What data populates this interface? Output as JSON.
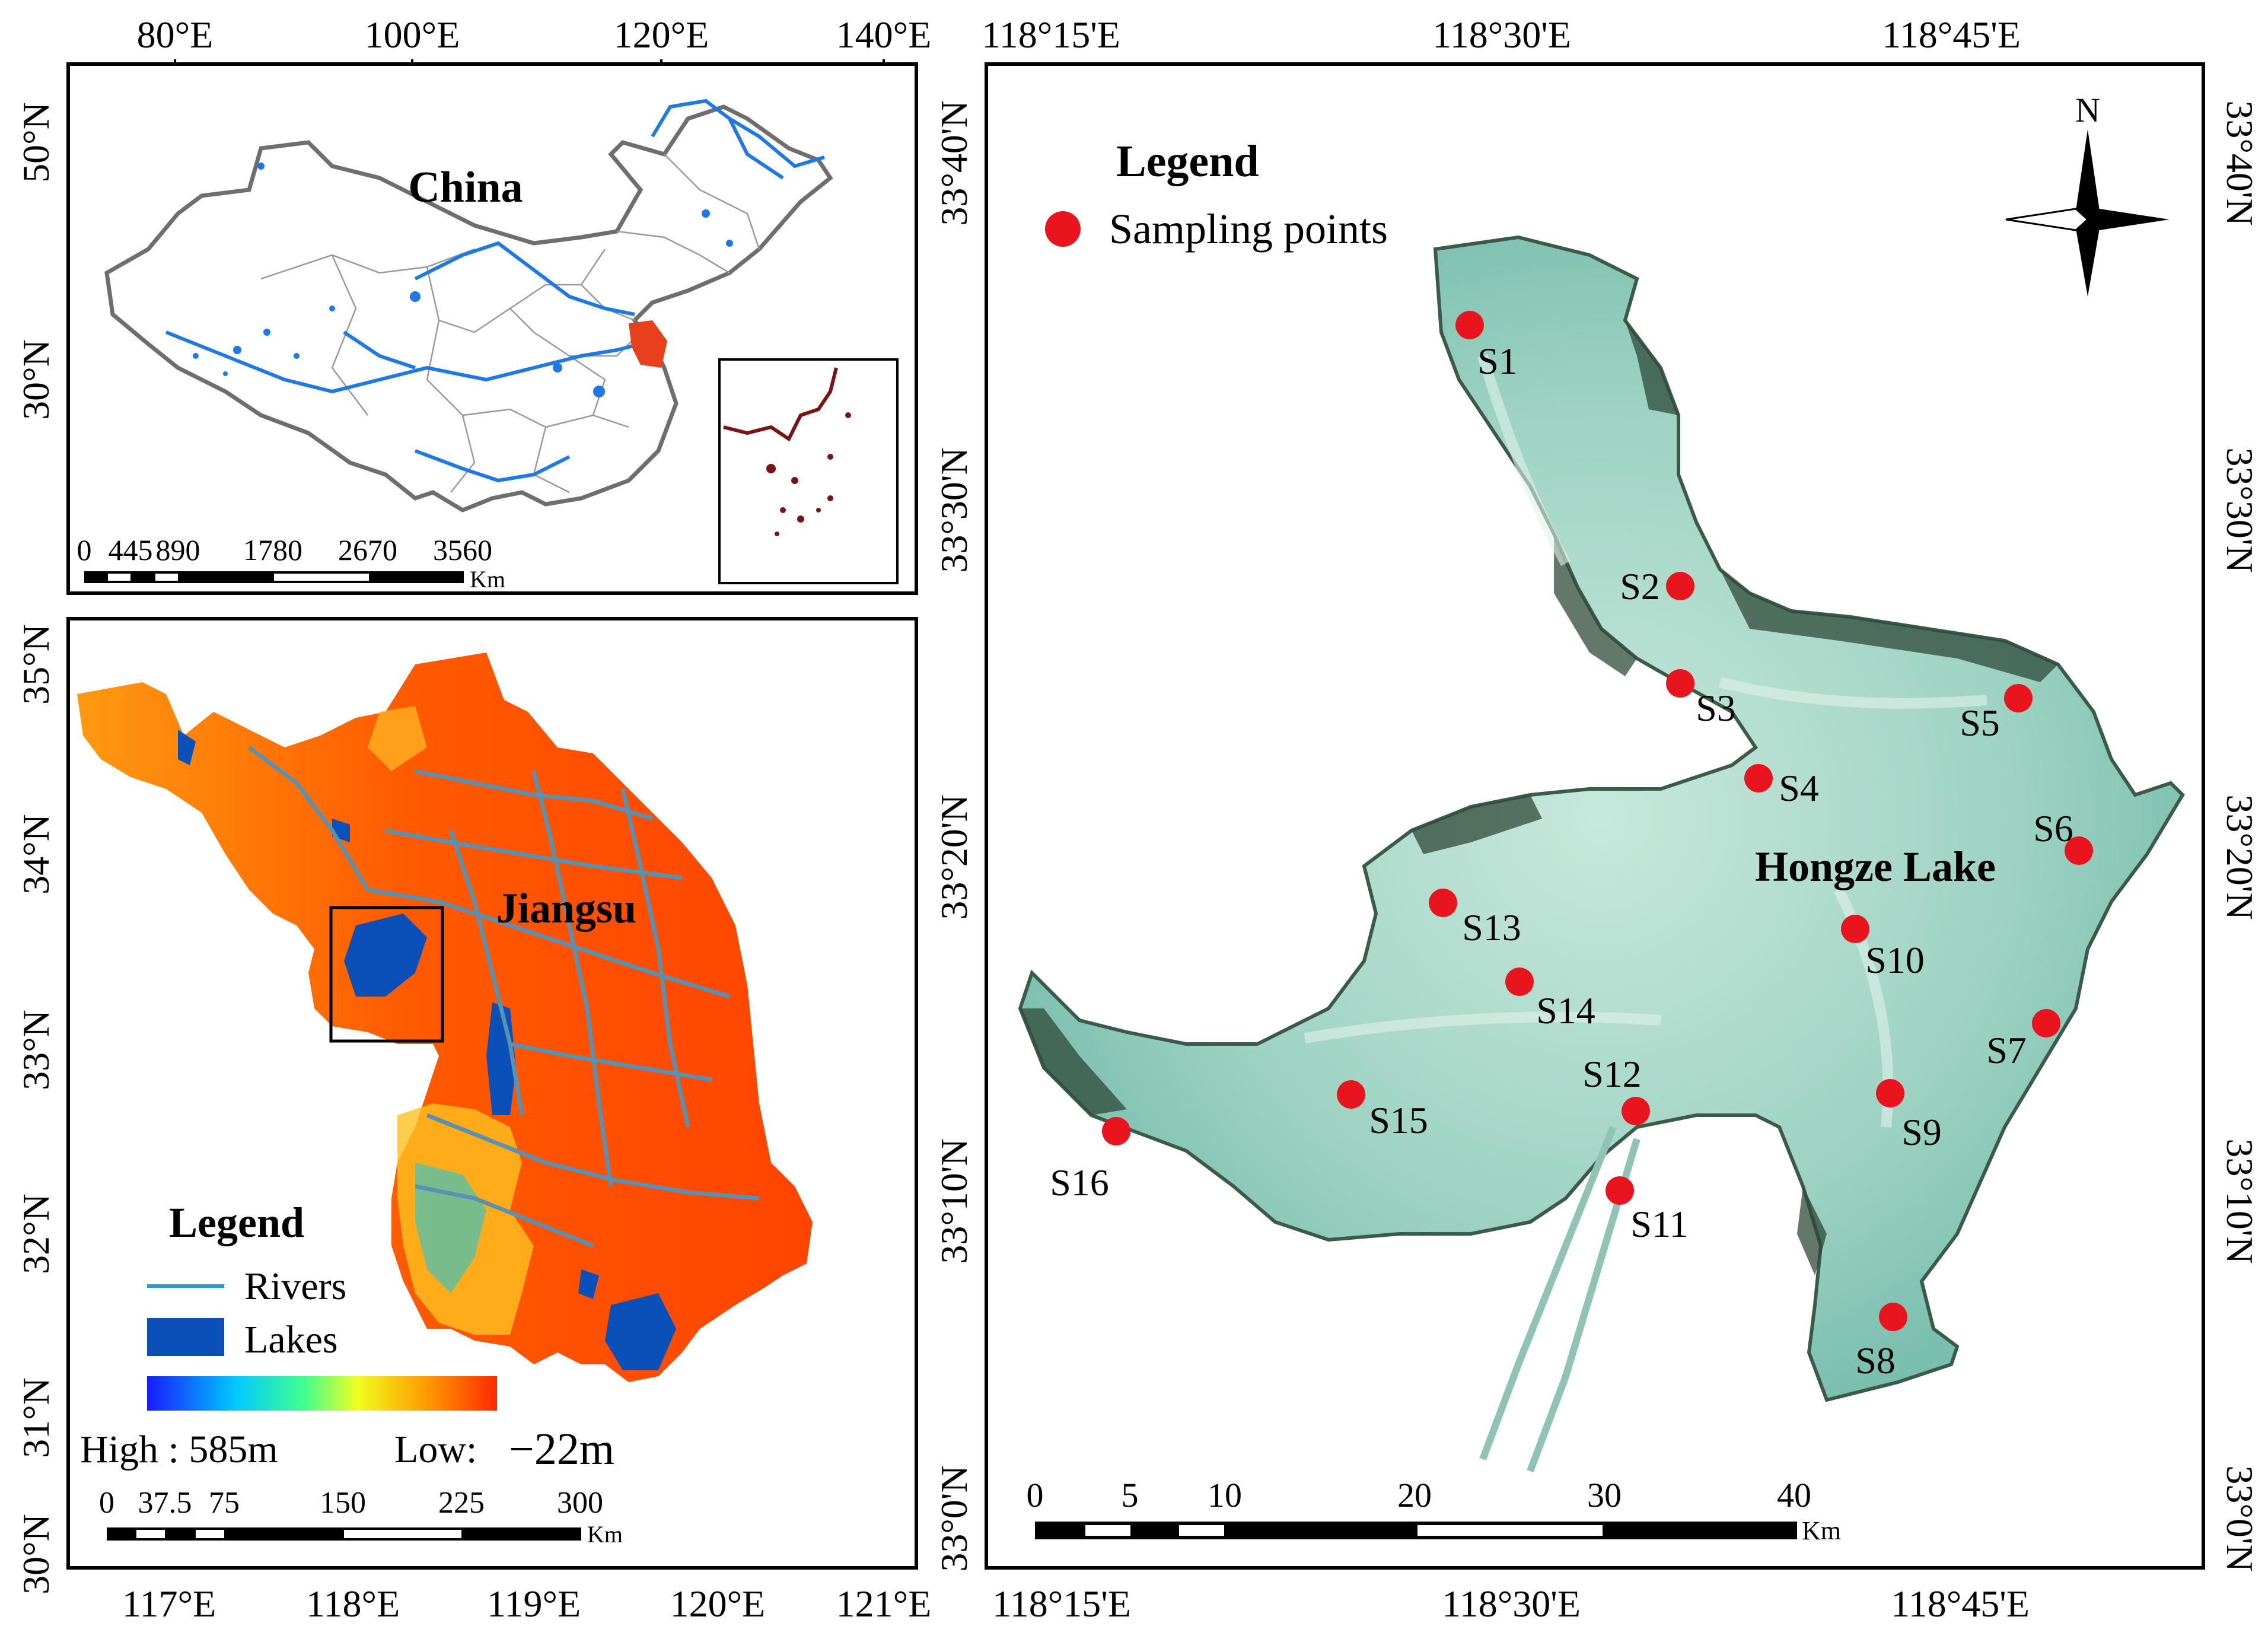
{
  "colors": {
    "frame": "#000000",
    "china_border": "#6e6e6e",
    "rivers": "#1e78e6",
    "lakes": "#0b4fb8",
    "jiangsu_highlight": "#e8401c",
    "south_china_sea": "#7a1414",
    "dem_high": "#ff3300",
    "dem_low": "#1a1aff",
    "jiangsu_rivers": "#5a90b0",
    "sampling_point": "#e8141e",
    "water": "#9fd3c4"
  },
  "china_panel": {
    "title": "China",
    "top_ticks": [
      "80°E",
      "100°E",
      "120°E",
      "140°E"
    ],
    "left_ticks": [
      "50°N",
      "30°N"
    ],
    "scale_labels": [
      "0",
      "445",
      "890",
      "1780",
      "2670",
      "3560"
    ],
    "scale_unit": "Km"
  },
  "jiangsu_panel": {
    "title": "Jiangsu",
    "left_ticks": [
      "35°N",
      "34°N",
      "33°N",
      "32°N",
      "31°N",
      "30°N"
    ],
    "bottom_ticks": [
      "117°E",
      "118°E",
      "119°E",
      "120°E",
      "121°E"
    ],
    "legend_title": "Legend",
    "legend_rivers": "Rivers",
    "legend_lakes": "Lakes",
    "dem_high_label": "High : 585m",
    "dem_low_label": "Low:",
    "dem_low_value": "−22m",
    "scale_labels": [
      "0",
      "37.5",
      "75",
      "150",
      "225",
      "300"
    ],
    "scale_unit": "Km"
  },
  "lake_panel": {
    "lake_name": "Hongze Lake",
    "legend_title": "Legend",
    "legend_item": "Sampling points",
    "north_label": "N",
    "top_ticks": [
      "118°15'E",
      "118°30'E",
      "118°45'E"
    ],
    "bottom_ticks": [
      "118°15'E",
      "118°30'E",
      "118°45'E"
    ],
    "left_ticks": [
      "33°40'N",
      "33°30'N",
      "33°20'N",
      "33°10'N",
      "33°0'N"
    ],
    "right_ticks": [
      "33°40'N",
      "33°30'N",
      "33°20'N",
      "33°10'N",
      "33°0'N"
    ],
    "scale_labels": [
      "0",
      "5",
      "10",
      "20",
      "30",
      "40"
    ],
    "scale_unit": "Km",
    "sampling_points": [
      "S1",
      "S2",
      "S3",
      "S4",
      "S5",
      "S6",
      "S7",
      "S8",
      "S9",
      "S10",
      "S11",
      "S12",
      "S13",
      "S14",
      "S15",
      "S16"
    ]
  }
}
